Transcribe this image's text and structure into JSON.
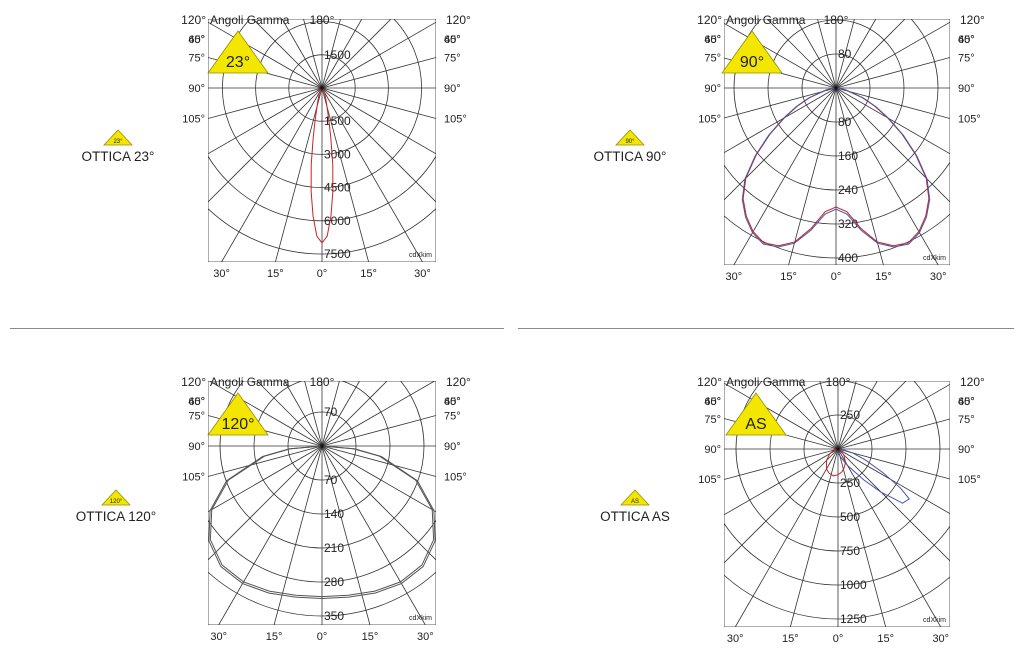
{
  "colors": {
    "badge": "#f3e600",
    "badge_stroke": "#9a8e00",
    "grid": "#333333",
    "curve_c0": "#cc2222",
    "curve_c90": "#4455aa",
    "curve_gray": "#555555"
  },
  "charts": [
    {
      "label": "OTTICA 23°",
      "badge": "23°",
      "badge_small": "23°",
      "header": {
        "left": "120°",
        "title": "Angoli Gamma",
        "top": "180°",
        "right": "120°"
      },
      "left_angles": [
        "105°",
        "90°",
        "75°",
        "60°",
        "45°"
      ],
      "right_angles": [
        "105°",
        "90°",
        "75°",
        "60°",
        "45°"
      ],
      "bottom_ticks": [
        "30°",
        "15°",
        "0°",
        "15°",
        "30°"
      ],
      "upper_labels": [
        "1500"
      ],
      "lower_labels": [
        "1500",
        "3000",
        "4500",
        "6000",
        "7500"
      ],
      "watermark": "cdXkim",
      "chart_data": {
        "type": "polar",
        "rmax": 7500,
        "series": [
          {
            "values": [
              [
                0,
                7000
              ],
              [
                2,
                6700
              ],
              [
                4,
                5800
              ],
              [
                6,
                4700
              ],
              [
                8,
                3500
              ],
              [
                10,
                2300
              ],
              [
                12,
                1500
              ],
              [
                14,
                1000
              ],
              [
                18,
                600
              ],
              [
                25,
                300
              ],
              [
                35,
                150
              ],
              [
                50,
                60
              ],
              [
                70,
                20
              ],
              [
                90,
                0
              ]
            ]
          }
        ]
      }
    },
    {
      "label": "OTTICA 90°",
      "badge": "90°",
      "badge_small": "90°",
      "header": {
        "left": "120°",
        "title": "Angoli Gamma",
        "top": "180°",
        "right": "120°"
      },
      "left_angles": [
        "105°",
        "90°",
        "75°",
        "60°",
        "45°"
      ],
      "right_angles": [
        "105°",
        "90°",
        "75°",
        "60°",
        "45°"
      ],
      "bottom_ticks": [
        "30°",
        "15°",
        "0°",
        "15°",
        "30°"
      ],
      "upper_labels": [
        "80"
      ],
      "lower_labels": [
        "80",
        "160",
        "240",
        "320",
        "400"
      ],
      "watermark": "cdXkim",
      "chart_data": {
        "type": "polar",
        "rmax": 400,
        "series": [
          {
            "values": [
              [
                0,
                280
              ],
              [
                5,
                292
              ],
              [
                10,
                335
              ],
              [
                15,
                375
              ],
              [
                20,
                395
              ],
              [
                25,
                402
              ],
              [
                30,
                390
              ],
              [
                35,
                368
              ],
              [
                40,
                340
              ],
              [
                45,
                300
              ],
              [
                50,
                245
              ],
              [
                55,
                190
              ],
              [
                60,
                140
              ],
              [
                65,
                100
              ],
              [
                70,
                65
              ],
              [
                80,
                20
              ],
              [
                90,
                0
              ]
            ]
          },
          {
            "values": [
              [
                0,
                285
              ],
              [
                5,
                298
              ],
              [
                10,
                340
              ],
              [
                15,
                378
              ],
              [
                20,
                398
              ],
              [
                25,
                405
              ],
              [
                30,
                393
              ],
              [
                35,
                371
              ],
              [
                40,
                343
              ],
              [
                45,
                303
              ],
              [
                50,
                248
              ],
              [
                55,
                193
              ],
              [
                60,
                143
              ],
              [
                65,
                103
              ],
              [
                70,
                68
              ],
              [
                80,
                22
              ],
              [
                90,
                0
              ]
            ]
          }
        ]
      }
    },
    {
      "label": "OTTICA 120°",
      "badge": "120°",
      "badge_small": "120°",
      "header": {
        "left": "120°",
        "title": "Angoli Gamma",
        "top": "180°",
        "right": "120°"
      },
      "left_angles": [
        "105°",
        "90°",
        "75°",
        "60°",
        "45°"
      ],
      "right_angles": [
        "105°",
        "90°",
        "75°",
        "60°",
        "45°"
      ],
      "bottom_ticks": [
        "30°",
        "15°",
        "0°",
        "15°",
        "30°"
      ],
      "upper_labels": [
        "70"
      ],
      "lower_labels": [
        "70",
        "140",
        "210",
        "280",
        "350"
      ],
      "watermark": "cdXkim",
      "chart_data": {
        "type": "polar",
        "rmax": 350,
        "series": [
          {
            "values": [
              [
                0,
                310
              ],
              [
                10,
                312
              ],
              [
                20,
                318
              ],
              [
                30,
                323
              ],
              [
                40,
                320
              ],
              [
                50,
                300
              ],
              [
                60,
                262
              ],
              [
                70,
                205
              ],
              [
                80,
                120
              ],
              [
                85,
                65
              ],
              [
                90,
                0
              ]
            ]
          },
          {
            "values": [
              [
                0,
                314
              ],
              [
                10,
                316
              ],
              [
                20,
                322
              ],
              [
                30,
                327
              ],
              [
                40,
                324
              ],
              [
                50,
                304
              ],
              [
                60,
                266
              ],
              [
                70,
                209
              ],
              [
                80,
                124
              ],
              [
                85,
                68
              ],
              [
                90,
                0
              ]
            ]
          }
        ]
      }
    },
    {
      "label": "OTTICA AS",
      "badge": "AS",
      "badge_small": "AS",
      "header": {
        "left": "120°",
        "title": "Angoli Gamma",
        "top": "180°",
        "right": "120°"
      },
      "left_angles": [
        "105°",
        "90°",
        "75°",
        "60°",
        "45°"
      ],
      "right_angles": [
        "105°",
        "90°",
        "75°",
        "60°",
        "45°"
      ],
      "bottom_ticks": [
        "30°",
        "15°",
        "0°",
        "15°",
        "30°"
      ],
      "upper_labels": [
        "250"
      ],
      "lower_labels": [
        "250",
        "500",
        "750",
        "1000",
        "1250"
      ],
      "watermark": "cdXkim",
      "chart_data": {
        "type": "polar",
        "rmax": 1250,
        "series": [
          {
            "values": [
              [
                -90,
                0
              ],
              [
                -75,
                30
              ],
              [
                -60,
                70
              ],
              [
                -45,
                120
              ],
              [
                -30,
                170
              ],
              [
                -20,
                190
              ],
              [
                -10,
                200
              ],
              [
                0,
                190
              ],
              [
                10,
                170
              ],
              [
                20,
                140
              ],
              [
                30,
                110
              ],
              [
                45,
                60
              ],
              [
                60,
                20
              ],
              [
                75,
                5
              ],
              [
                90,
                0
              ]
            ]
          },
          {
            "values": [
              [
                -90,
                0
              ],
              [
                -40,
                10
              ],
              [
                -10,
                15
              ],
              [
                0,
                20
              ],
              [
                10,
                40
              ],
              [
                20,
                70
              ],
              [
                30,
                140
              ],
              [
                40,
                300
              ],
              [
                45,
                450
              ],
              [
                50,
                620
              ],
              [
                55,
                640
              ],
              [
                58,
                540
              ],
              [
                62,
                380
              ],
              [
                68,
                220
              ],
              [
                75,
                110
              ],
              [
                85,
                30
              ],
              [
                90,
                0
              ]
            ]
          }
        ]
      }
    }
  ]
}
